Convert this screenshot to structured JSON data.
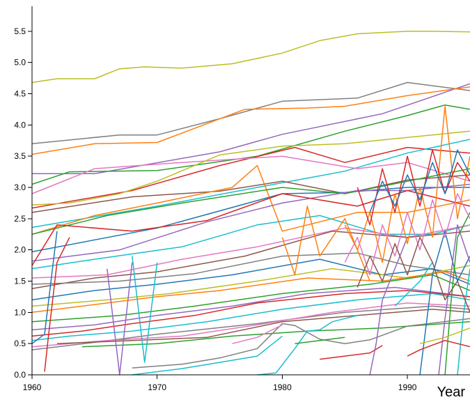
{
  "chart_data": {
    "type": "line",
    "title": "",
    "xlabel": "Year",
    "ylabel": "",
    "xlim": [
      1960,
      1995
    ],
    "ylim": [
      0,
      5.9
    ],
    "x_ticks": [
      "1960",
      "1970",
      "1980",
      "1990"
    ],
    "y_ticks": [
      "0.0",
      "0.5",
      "1.0",
      "1.5",
      "2.0",
      "2.5",
      "3.0",
      "3.5",
      "4.0",
      "4.5",
      "5.0",
      "5.5"
    ],
    "grid": false,
    "legend": "none",
    "series": [
      {
        "color": "#bcbd22",
        "x": [
          1960,
          1962,
          1965,
          1967,
          1969,
          1972,
          1976,
          1980,
          1983,
          1986,
          1990,
          1992,
          1995
        ],
        "values": [
          4.68,
          4.74,
          4.74,
          4.9,
          4.93,
          4.91,
          4.98,
          5.15,
          5.35,
          5.46,
          5.5,
          5.5,
          5.49
        ]
      },
      {
        "color": "#7f7f7f",
        "x": [
          1960,
          1967,
          1970,
          1975,
          1980,
          1986,
          1990,
          1995
        ],
        "values": [
          3.7,
          3.84,
          3.84,
          4.1,
          4.38,
          4.43,
          4.68,
          4.55
        ]
      },
      {
        "color": "#9467bd",
        "x": [
          1960,
          1965,
          1975,
          1980,
          1988,
          1995
        ],
        "values": [
          3.22,
          3.22,
          3.57,
          3.85,
          4.18,
          4.66
        ]
      },
      {
        "color": "#ff7f0e",
        "x": [
          1960,
          1965,
          1970,
          1977,
          1982,
          1985,
          1990,
          1995
        ],
        "values": [
          3.53,
          3.7,
          3.72,
          4.25,
          4.27,
          4.3,
          4.47,
          4.61
        ]
      },
      {
        "color": "#2ca02c",
        "x": [
          1960,
          1963,
          1970,
          1978,
          1985,
          1990,
          1993,
          1995
        ],
        "values": [
          3.05,
          3.25,
          3.27,
          3.5,
          3.9,
          4.15,
          4.32,
          4.25
        ]
      },
      {
        "color": "#d62728",
        "x": [
          1960,
          1968,
          1975,
          1981,
          1985,
          1990,
          1995
        ],
        "values": [
          2.67,
          2.95,
          3.35,
          3.64,
          3.4,
          3.64,
          3.55
        ]
      },
      {
        "color": "#17becf",
        "x": [
          1960,
          1970,
          1978,
          1985,
          1990,
          1995
        ],
        "values": [
          2.36,
          2.7,
          3.0,
          3.26,
          3.55,
          3.77
        ]
      },
      {
        "color": "#e377c2",
        "x": [
          1960,
          1965,
          1972,
          1980,
          1986,
          1990,
          1995
        ],
        "values": [
          2.9,
          3.3,
          3.4,
          3.5,
          3.3,
          3.4,
          3.1
        ]
      },
      {
        "color": "#8c564b",
        "x": [
          1960,
          1968,
          1975,
          1980,
          1985,
          1990,
          1995
        ],
        "values": [
          2.6,
          2.85,
          2.94,
          3.1,
          2.9,
          3.12,
          3.2
        ]
      },
      {
        "color": "#1f77b4",
        "x": [
          1960,
          1970,
          1980,
          1985,
          1990,
          1995
        ],
        "values": [
          1.97,
          2.35,
          2.9,
          2.92,
          3.0,
          3.0
        ]
      },
      {
        "color": "#bcbd22",
        "x": [
          1960,
          1963,
          1967,
          1970,
          1975,
          1980,
          1985,
          1990,
          1995
        ],
        "values": [
          2.72,
          2.75,
          2.9,
          3.1,
          3.52,
          3.66,
          3.7,
          3.8,
          3.9
        ]
      },
      {
        "color": "#ff7f0e",
        "x": [
          1960,
          1965,
          1970,
          1976,
          1978,
          1980,
          1986,
          1990,
          1995
        ],
        "values": [
          2.25,
          2.55,
          2.75,
          3.0,
          3.35,
          2.3,
          2.6,
          2.6,
          2.8
        ]
      },
      {
        "color": "#2ca02c",
        "x": [
          1960,
          1966,
          1972,
          1980,
          1985,
          1990,
          1995
        ],
        "values": [
          2.25,
          2.55,
          2.75,
          3.0,
          2.9,
          3.1,
          3.3
        ]
      },
      {
        "color": "#9467bd",
        "x": [
          1960,
          1967,
          1974,
          1980,
          1986,
          1990,
          1995
        ],
        "values": [
          1.82,
          2.0,
          2.45,
          2.75,
          2.95,
          2.95,
          3.05
        ]
      },
      {
        "color": "#d62728",
        "x": [
          1960,
          1962,
          1968,
          1974,
          1980,
          1986,
          1990,
          1995
        ],
        "values": [
          1.75,
          2.4,
          2.3,
          2.47,
          2.9,
          2.7,
          2.95,
          2.7
        ]
      },
      {
        "color": "#17becf",
        "x": [
          1960,
          1965,
          1972,
          1978,
          1983,
          1988,
          1992,
          1995
        ],
        "values": [
          1.7,
          1.85,
          2.05,
          2.4,
          2.55,
          2.25,
          2.25,
          2.4
        ]
      },
      {
        "color": "#e377c2",
        "x": [
          1960,
          1966,
          1972,
          1978,
          1985,
          1990,
          1995
        ],
        "values": [
          1.55,
          1.6,
          1.85,
          2.05,
          2.35,
          2.2,
          2.4
        ]
      },
      {
        "color": "#8c564b",
        "x": [
          1960,
          1965,
          1970,
          1977,
          1984,
          1990,
          1995
        ],
        "values": [
          1.38,
          1.55,
          1.65,
          1.9,
          2.3,
          2.2,
          2.3
        ]
      },
      {
        "color": "#7f7f7f",
        "x": [
          1960,
          1967,
          1973,
          1980,
          1986,
          1990,
          1995
        ],
        "values": [
          1.45,
          1.5,
          1.62,
          1.9,
          1.95,
          1.75,
          1.6
        ]
      },
      {
        "color": "#1f77b4",
        "x": [
          1960,
          1965,
          1970,
          1976,
          1983,
          1988,
          1992,
          1995
        ],
        "values": [
          1.2,
          1.35,
          1.45,
          1.6,
          1.85,
          1.6,
          1.7,
          1.45
        ]
      },
      {
        "color": "#bcbd22",
        "x": [
          1960,
          1966,
          1971,
          1978,
          1984,
          1990,
          1995
        ],
        "values": [
          1.1,
          1.2,
          1.3,
          1.5,
          1.7,
          1.55,
          1.75
        ]
      },
      {
        "color": "#ff7f0e",
        "x": [
          1960,
          1964,
          1970,
          1975,
          1982,
          1988,
          1993,
          1995
        ],
        "values": [
          1.0,
          1.1,
          1.25,
          1.35,
          1.55,
          1.5,
          1.65,
          1.5
        ]
      },
      {
        "color": "#2ca02c",
        "x": [
          1960,
          1967,
          1973,
          1980,
          1987,
          1992,
          1995
        ],
        "values": [
          0.85,
          0.95,
          1.1,
          1.3,
          1.45,
          1.6,
          1.35
        ]
      },
      {
        "color": "#9467bd",
        "x": [
          1960,
          1965,
          1970,
          1976,
          1982,
          1989,
          1995
        ],
        "values": [
          0.72,
          0.8,
          0.95,
          1.1,
          1.3,
          1.4,
          1.25
        ]
      },
      {
        "color": "#d62728",
        "x": [
          1960,
          1964,
          1968,
          1973,
          1978,
          1985,
          1990,
          1995
        ],
        "values": [
          0.62,
          0.7,
          0.82,
          0.95,
          1.15,
          1.3,
          1.35,
          1.25
        ]
      },
      {
        "color": "#17becf",
        "x": [
          1960,
          1963,
          1968,
          1974,
          1980,
          1986,
          1992,
          1995
        ],
        "values": [
          0.55,
          0.62,
          0.7,
          0.85,
          1.05,
          1.2,
          1.3,
          1.2
        ]
      },
      {
        "color": "#7f7f7f",
        "x": [
          1960,
          1965,
          1970,
          1978,
          1985,
          1992,
          1995
        ],
        "values": [
          0.4,
          0.52,
          0.65,
          0.82,
          1.0,
          1.1,
          1.05
        ]
      },
      {
        "color": "#e377c2",
        "x": [
          1960,
          1966,
          1972,
          1978,
          1984,
          1990,
          1995
        ],
        "values": [
          0.45,
          0.55,
          0.62,
          0.8,
          1.0,
          1.15,
          1.1
        ]
      },
      {
        "color": "#8c564b",
        "x": [
          1962,
          1968,
          1974,
          1980,
          1986,
          1992,
          1995
        ],
        "values": [
          0.5,
          0.55,
          0.6,
          0.85,
          0.95,
          1.05,
          1.0
        ]
      },
      {
        "color": "#2ca02c",
        "x": [
          1964,
          1970,
          1976,
          1982,
          1988,
          1995
        ],
        "values": [
          0.45,
          0.5,
          0.62,
          0.7,
          0.75,
          0.85
        ]
      },
      {
        "color": "#1f77b4",
        "x": [
          1960,
          1961,
          1962
        ],
        "values": [
          0.5,
          0.65,
          2.3
        ]
      },
      {
        "color": "#d62728",
        "x": [
          1961,
          1961.3,
          1962,
          1963
        ],
        "values": [
          0.05,
          0.6,
          1.8,
          2.2
        ]
      },
      {
        "color": "#9467bd",
        "x": [
          1966,
          1967,
          1968
        ],
        "values": [
          1.7,
          0.0,
          1.8
        ]
      },
      {
        "color": "#17becf",
        "x": [
          1968,
          1969,
          1970
        ],
        "values": [
          1.9,
          0.2,
          1.8
        ]
      },
      {
        "color": "#ff7f0e",
        "x": [
          1980,
          1981,
          1982,
          1983,
          1985,
          1987
        ],
        "values": [
          2.2,
          1.6,
          2.7,
          1.9,
          2.5,
          1.5
        ]
      },
      {
        "color": "#7f7f7f",
        "x": [
          1968,
          1972,
          1975,
          1978,
          1980,
          1981,
          1983,
          1985,
          1987,
          1990,
          1995
        ],
        "values": [
          0.11,
          0.17,
          0.27,
          0.42,
          0.82,
          0.79,
          0.57,
          0.5,
          0.56,
          0.78,
          0.9
        ]
      },
      {
        "color": "#17becf",
        "x": [
          1968,
          1972,
          1975,
          1978,
          1980
        ],
        "values": [
          0.0,
          0.1,
          0.2,
          0.3,
          0.62
        ]
      },
      {
        "color": "#e377c2",
        "x": [
          1976,
          1978,
          1980
        ],
        "values": [
          0.5,
          0.6,
          0.8
        ]
      },
      {
        "color": "#17becf",
        "x": [
          1978,
          1979.5,
          1981,
          1982,
          1983,
          1984,
          1986
        ],
        "values": [
          0.0,
          0.03,
          0.42,
          0.7,
          0.72,
          0.85,
          0.95
        ]
      },
      {
        "color": "#2ca02c",
        "x": [
          1981,
          1983,
          1985
        ],
        "values": [
          0.5,
          0.55,
          0.6
        ]
      },
      {
        "color": "#d62728",
        "x": [
          1983,
          1985,
          1987,
          1988
        ],
        "values": [
          0.25,
          0.3,
          0.35,
          0.47
        ]
      },
      {
        "color": "#9467bd",
        "x": [
          1987,
          1987.5,
          1988,
          1990
        ],
        "values": [
          0.0,
          0.5,
          1.2,
          2.2
        ]
      },
      {
        "color": "#17becf",
        "x": [
          1989,
          1990,
          1991,
          1992
        ],
        "values": [
          1.1,
          1.3,
          1.5,
          1.8
        ]
      },
      {
        "color": "#1f77b4",
        "x": [
          1991,
          1992,
          1993,
          1994,
          1995
        ],
        "values": [
          0.0,
          1.6,
          2.3,
          1.5,
          1.9
        ]
      },
      {
        "color": "#9467bd",
        "x": [
          1992.5,
          1993,
          1994,
          1995
        ],
        "values": [
          0.0,
          0.9,
          2.4,
          1.8
        ]
      },
      {
        "color": "#2ca02c",
        "x": [
          1993,
          1993.5,
          1994,
          1995
        ],
        "values": [
          0.0,
          1.2,
          2.2,
          2.6
        ]
      },
      {
        "color": "#17becf",
        "x": [
          1994,
          1994.5,
          1995
        ],
        "values": [
          0.0,
          1.0,
          1.7
        ]
      },
      {
        "color": "#d62728",
        "x": [
          1990,
          1991,
          1993,
          1995
        ],
        "values": [
          0.3,
          0.4,
          0.55,
          0.45
        ]
      },
      {
        "color": "#bcbd22",
        "x": [
          1991,
          1993,
          1995
        ],
        "values": [
          0.5,
          0.6,
          0.75
        ]
      },
      {
        "color": "#ff7f0e",
        "x": [
          1985,
          1986,
          1987,
          1988,
          1989,
          1990,
          1991,
          1992,
          1993,
          1994,
          1995
        ],
        "values": [
          2.4,
          2.0,
          2.6,
          1.8,
          2.9,
          2.1,
          3.0,
          2.2,
          4.3,
          2.5,
          3.5
        ]
      },
      {
        "color": "#d62728",
        "x": [
          1986,
          1987,
          1988,
          1989,
          1990,
          1991,
          1992,
          1993,
          1994,
          1995
        ],
        "values": [
          3.0,
          2.4,
          3.3,
          2.6,
          3.5,
          2.7,
          3.6,
          2.9,
          3.4,
          3.1
        ]
      },
      {
        "color": "#e377c2",
        "x": [
          1985,
          1986,
          1987,
          1988,
          1989,
          1990,
          1991,
          1992,
          1993,
          1994,
          1995
        ],
        "values": [
          1.8,
          2.2,
          1.6,
          2.4,
          1.9,
          2.6,
          2.0,
          2.8,
          2.2,
          2.9,
          2.5
        ]
      },
      {
        "color": "#8c564b",
        "x": [
          1986,
          1987,
          1988,
          1989,
          1990,
          1991,
          1992,
          1993,
          1994,
          1995
        ],
        "values": [
          1.4,
          1.9,
          1.5,
          2.1,
          1.6,
          2.2,
          1.8,
          1.2,
          1.5,
          1.0
        ]
      },
      {
        "color": "#1f77b4",
        "x": [
          1987,
          1988,
          1989,
          1990,
          1991,
          1992,
          1993,
          1994,
          1995
        ],
        "values": [
          2.6,
          3.1,
          2.7,
          3.2,
          2.8,
          3.4,
          2.9,
          3.6,
          3.2
        ]
      }
    ]
  }
}
